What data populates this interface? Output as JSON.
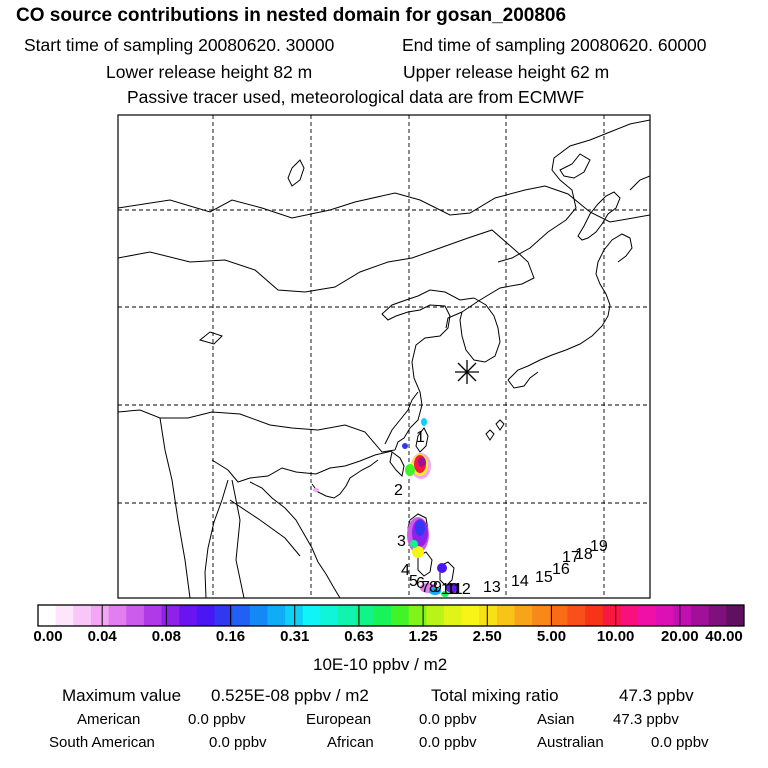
{
  "header": {
    "title": "CO  source contributions in nested domain for gosan_200806",
    "start_label": "Start time of sampling 20080620. 30000",
    "end_label": "End time of sampling 20080620. 60000",
    "lower_label": "Lower release height   82 m",
    "upper_label": "Upper release height   62 m",
    "note": "Passive tracer used, meteorological data are from ECMWF"
  },
  "map": {
    "receptor_marker": "asterisk-icon",
    "trajectory_labels": [
      "1",
      "2",
      "3",
      "4",
      "5",
      "6",
      "7",
      "8",
      "9",
      "10",
      "11",
      "12",
      "13",
      "14",
      "15",
      "16",
      "17",
      "18",
      "19"
    ]
  },
  "colorbar": {
    "unit": "10E-10 ppbv / m2",
    "tick_labels": [
      "0.00",
      "0.04",
      "0.08",
      "0.16",
      "0.31",
      "0.63",
      "1.25",
      "2.50",
      "5.00",
      "10.00",
      "20.00",
      "40.00"
    ],
    "colors": [
      "#ffffff",
      "#fde5fb",
      "#f8c6f8",
      "#f2a6f4",
      "#e27ef0",
      "#cc5cec",
      "#b13ae8",
      "#8e22ea",
      "#6a14f2",
      "#4a16f4",
      "#3238f2",
      "#2060f4",
      "#1488f4",
      "#10acf6",
      "#10d0f8",
      "#10f4f8",
      "#10f4d8",
      "#10f4b0",
      "#10f488",
      "#18f458",
      "#40f428",
      "#80f418",
      "#b8f418",
      "#e0f418",
      "#f8f418",
      "#f8e018",
      "#f8c418",
      "#f8a418",
      "#f88818",
      "#f86c18",
      "#f85018",
      "#f83418",
      "#f81840",
      "#f8107c",
      "#f010a8",
      "#dc10b4",
      "#c010b0",
      "#a01098",
      "#80107c",
      "#601060"
    ]
  },
  "stats": {
    "max_label": "Maximum value",
    "max_value": "0.525E-08 ppbv / m2",
    "total_label": "Total mixing ratio",
    "total_value": "47.3 ppbv",
    "regions": [
      {
        "name": "American",
        "value": "0.0 ppbv"
      },
      {
        "name": "European",
        "value": "0.0 ppbv"
      },
      {
        "name": "Asian",
        "value": "47.3 ppbv"
      },
      {
        "name": "South American",
        "value": "0.0 ppbv"
      },
      {
        "name": "African",
        "value": "0.0 ppbv"
      },
      {
        "name": "Australian",
        "value": "0.0 ppbv"
      }
    ]
  }
}
